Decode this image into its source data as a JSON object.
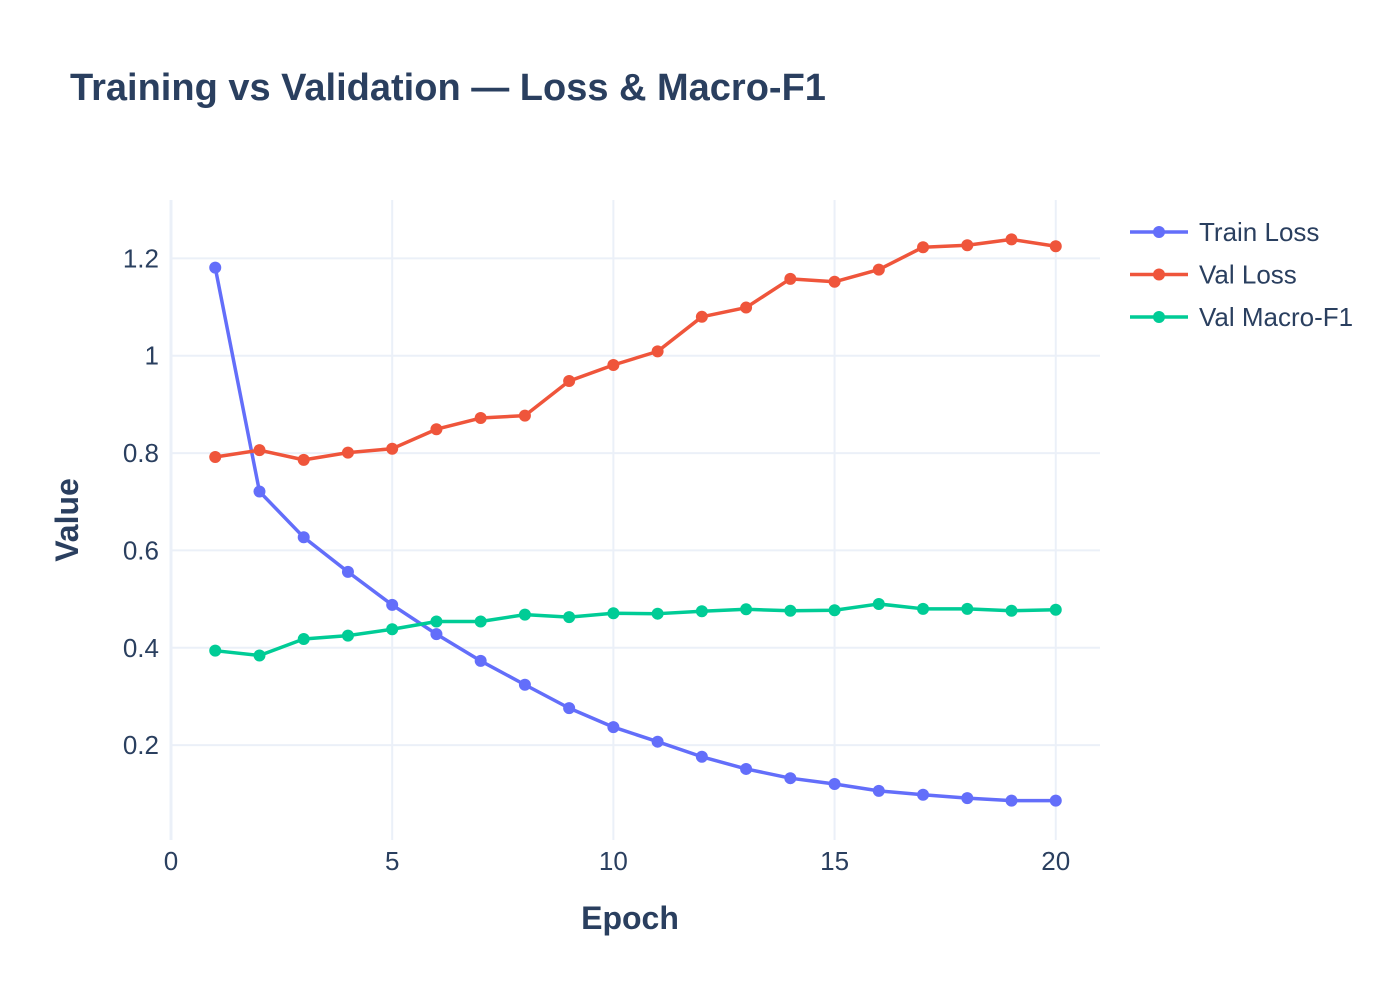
{
  "chart_data": {
    "type": "line",
    "title": "Training vs Validation — Loss & Macro-F1",
    "xlabel": "Epoch",
    "ylabel": "Value",
    "xlim": [
      0,
      21
    ],
    "ylim": [
      0.005,
      1.32
    ],
    "x_ticks": [
      0,
      5,
      10,
      15,
      20
    ],
    "x_tick_labels": [
      "0",
      "5",
      "10",
      "15",
      "20"
    ],
    "y_ticks": [
      0.2,
      0.4,
      0.6,
      0.8,
      1.0,
      1.2
    ],
    "y_tick_labels": [
      "0.2",
      "0.4",
      "0.6",
      "0.8",
      "1",
      "1.2"
    ],
    "grid": true,
    "legend_position": "top-right-outside",
    "x": [
      1,
      2,
      3,
      4,
      5,
      6,
      7,
      8,
      9,
      10,
      11,
      12,
      13,
      14,
      15,
      16,
      17,
      18,
      19,
      20
    ],
    "series": [
      {
        "name": "Train Loss",
        "color": "#636efa",
        "values": [
          1.181,
          0.721,
          0.627,
          0.556,
          0.488,
          0.428,
          0.373,
          0.324,
          0.276,
          0.237,
          0.207,
          0.176,
          0.151,
          0.132,
          0.12,
          0.106,
          0.098,
          0.091,
          0.086,
          0.086
        ]
      },
      {
        "name": "Val Loss",
        "color": "#ef553b",
        "values": [
          0.792,
          0.806,
          0.786,
          0.801,
          0.809,
          0.849,
          0.872,
          0.877,
          0.948,
          0.981,
          1.009,
          1.08,
          1.099,
          1.158,
          1.152,
          1.177,
          1.223,
          1.227,
          1.239,
          1.225
        ]
      },
      {
        "name": "Val Macro-F1",
        "color": "#00cc96",
        "values": [
          0.394,
          0.384,
          0.418,
          0.425,
          0.438,
          0.454,
          0.454,
          0.468,
          0.463,
          0.471,
          0.47,
          0.475,
          0.479,
          0.476,
          0.477,
          0.49,
          0.48,
          0.48,
          0.476,
          0.478
        ]
      }
    ]
  }
}
